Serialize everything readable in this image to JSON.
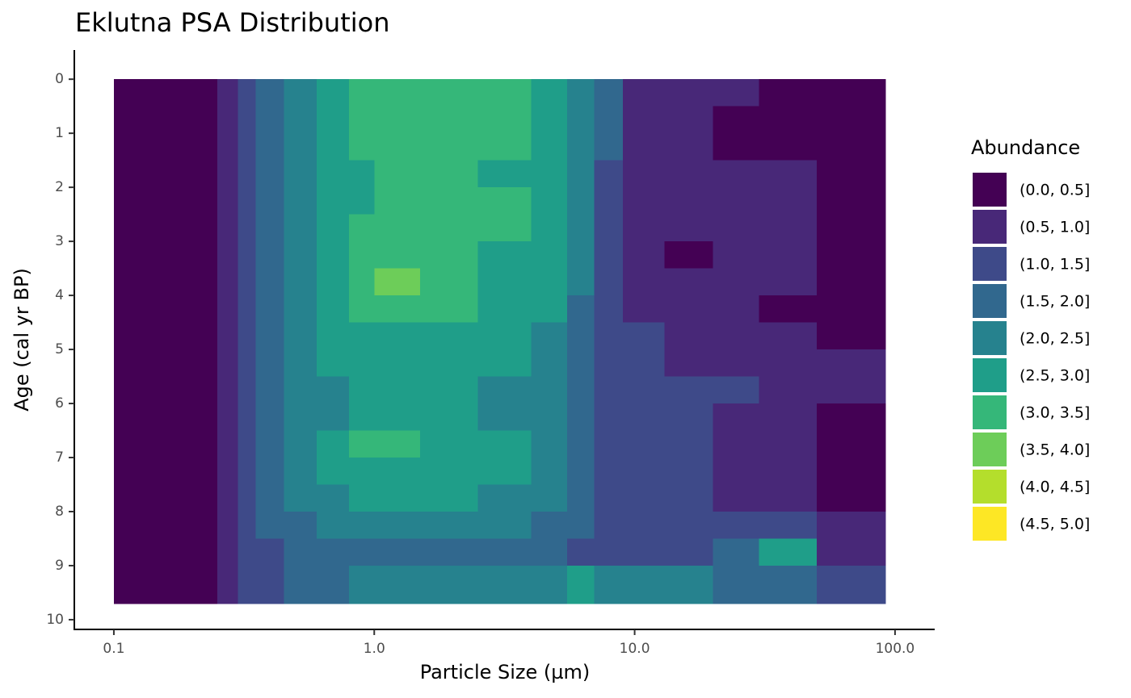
{
  "chart_data": {
    "type": "contour",
    "title": "Eklutna PSA Distribution",
    "x_label": "Particle Size (µm)",
    "y_label": "Age (cal yr BP)",
    "x_log": true,
    "xlim": [
      0.0705,
      142
    ],
    "ylim": [
      10.18,
      -0.54
    ],
    "xticks": [
      0.1,
      {
        "value": 1,
        "label": "1.0"
      },
      {
        "value": 10,
        "label": "10.0"
      },
      {
        "value": 100,
        "label": "100.0"
      }
    ],
    "yticks": [
      0,
      1,
      2,
      3,
      4,
      5,
      6,
      7,
      8,
      9,
      10
    ],
    "x_bins": [
      0.1,
      0.25,
      0.3,
      0.35,
      0.45,
      0.6,
      0.8,
      1.0,
      1.5,
      2.5,
      4,
      5.5,
      7,
      9,
      13,
      20,
      30,
      50,
      92
    ],
    "y_bins": [
      0,
      0.5,
      1,
      1.5,
      2,
      2.5,
      3,
      3.5,
      4,
      4.5,
      5,
      5.5,
      6,
      6.5,
      7,
      7.5,
      8,
      8.5,
      9,
      9.7
    ],
    "z": [
      [
        0.2,
        0.7,
        1.2,
        1.7,
        2.2,
        2.7,
        3.2,
        3.2,
        3.2,
        3.2,
        2.7,
        2.2,
        1.7,
        0.7,
        0.7,
        0.7,
        0.2,
        0.2
      ],
      [
        0.2,
        0.7,
        1.2,
        1.7,
        2.2,
        2.7,
        3.2,
        3.3,
        3.3,
        3.3,
        2.7,
        2.2,
        1.7,
        0.7,
        0.7,
        0.2,
        0.2,
        0.2
      ],
      [
        0.2,
        0.7,
        1.2,
        1.7,
        2.2,
        2.7,
        3.2,
        3.3,
        3.3,
        3.3,
        2.7,
        2.2,
        1.7,
        0.7,
        0.7,
        0.2,
        0.2,
        0.2
      ],
      [
        0.2,
        0.7,
        1.2,
        1.7,
        2.2,
        2.7,
        2.7,
        3.2,
        3.2,
        2.7,
        2.7,
        2.2,
        1.2,
        0.7,
        0.7,
        0.7,
        0.7,
        0.2
      ],
      [
        0.2,
        0.7,
        1.2,
        1.7,
        2.2,
        2.7,
        2.7,
        3.2,
        3.2,
        3.2,
        2.7,
        2.2,
        1.2,
        0.7,
        0.7,
        0.7,
        0.7,
        0.2
      ],
      [
        0.2,
        0.7,
        1.2,
        1.7,
        2.2,
        2.7,
        3.2,
        3.2,
        3.2,
        3.2,
        2.7,
        2.2,
        1.2,
        0.7,
        0.7,
        0.7,
        0.7,
        0.2
      ],
      [
        0.2,
        0.7,
        1.2,
        1.7,
        2.2,
        2.7,
        3.2,
        3.2,
        3.2,
        2.7,
        2.7,
        2.2,
        1.2,
        0.7,
        0.2,
        0.7,
        0.7,
        0.2
      ],
      [
        0.2,
        0.7,
        1.2,
        1.7,
        2.2,
        2.7,
        3.2,
        3.7,
        3.2,
        2.7,
        2.7,
        2.2,
        1.2,
        0.7,
        0.7,
        0.7,
        0.7,
        0.2
      ],
      [
        0.2,
        0.7,
        1.2,
        1.7,
        2.2,
        2.7,
        3.2,
        3.2,
        3.2,
        2.7,
        2.7,
        1.7,
        1.2,
        0.7,
        0.7,
        0.7,
        0.2,
        0.2
      ],
      [
        0.2,
        0.7,
        1.2,
        1.7,
        2.2,
        2.7,
        2.7,
        2.7,
        2.7,
        2.7,
        2.2,
        1.7,
        1.2,
        1.2,
        0.7,
        0.7,
        0.7,
        0.2
      ],
      [
        0.2,
        0.7,
        1.2,
        1.7,
        2.2,
        2.7,
        2.7,
        2.7,
        2.7,
        2.7,
        2.2,
        1.7,
        1.2,
        1.2,
        0.7,
        0.7,
        0.7,
        0.7
      ],
      [
        0.2,
        0.7,
        1.2,
        1.7,
        2.2,
        2.2,
        2.7,
        2.7,
        2.7,
        2.2,
        2.2,
        1.7,
        1.2,
        1.2,
        1.2,
        1.2,
        0.7,
        0.7
      ],
      [
        0.2,
        0.7,
        1.2,
        1.7,
        2.2,
        2.2,
        2.7,
        2.7,
        2.7,
        2.2,
        2.2,
        1.7,
        1.2,
        1.2,
        1.2,
        0.7,
        0.7,
        0.2
      ],
      [
        0.2,
        0.7,
        1.2,
        1.7,
        2.2,
        2.7,
        3.2,
        3.2,
        2.7,
        2.7,
        2.2,
        1.7,
        1.2,
        1.2,
        1.2,
        0.7,
        0.7,
        0.2
      ],
      [
        0.2,
        0.7,
        1.2,
        1.7,
        2.2,
        2.7,
        2.7,
        2.7,
        2.7,
        2.7,
        2.2,
        1.7,
        1.2,
        1.2,
        1.2,
        0.7,
        0.7,
        0.2
      ],
      [
        0.2,
        0.7,
        1.2,
        1.7,
        2.2,
        2.2,
        2.7,
        2.7,
        2.7,
        2.2,
        2.2,
        1.7,
        1.2,
        1.2,
        1.2,
        0.7,
        0.7,
        0.2
      ],
      [
        0.2,
        0.7,
        1.2,
        1.7,
        1.7,
        2.2,
        2.2,
        2.2,
        2.2,
        2.2,
        1.7,
        1.7,
        1.2,
        1.2,
        1.2,
        1.2,
        1.2,
        0.7
      ],
      [
        0.2,
        0.7,
        1.2,
        1.2,
        1.7,
        1.7,
        1.7,
        1.7,
        1.7,
        1.7,
        1.7,
        1.2,
        1.2,
        1.2,
        1.2,
        1.7,
        2.7,
        0.7
      ],
      [
        0.2,
        0.7,
        1.2,
        1.2,
        1.7,
        1.7,
        2.2,
        2.2,
        2.2,
        2.2,
        2.2,
        2.7,
        2.2,
        2.2,
        2.2,
        1.7,
        1.7,
        1.2
      ]
    ],
    "legend_title": "Abundance",
    "breaks": [
      0,
      0.5,
      1,
      1.5,
      2,
      2.5,
      3,
      3.5,
      4,
      4.5,
      5
    ],
    "legend_labels": [
      "(0.0, 0.5]",
      "(0.5, 1.0]",
      "(1.0, 1.5]",
      "(1.5, 2.0]",
      "(2.0, 2.5]",
      "(2.5, 3.0]",
      "(3.0, 3.5]",
      "(3.5, 4.0]",
      "(4.0, 4.5]",
      "(4.5, 5.0]"
    ],
    "colors": [
      "#440154",
      "#482878",
      "#3e4a89",
      "#31688e",
      "#26828e",
      "#1f9e89",
      "#35b779",
      "#6dcd59",
      "#b4de2c",
      "#fde725"
    ]
  }
}
